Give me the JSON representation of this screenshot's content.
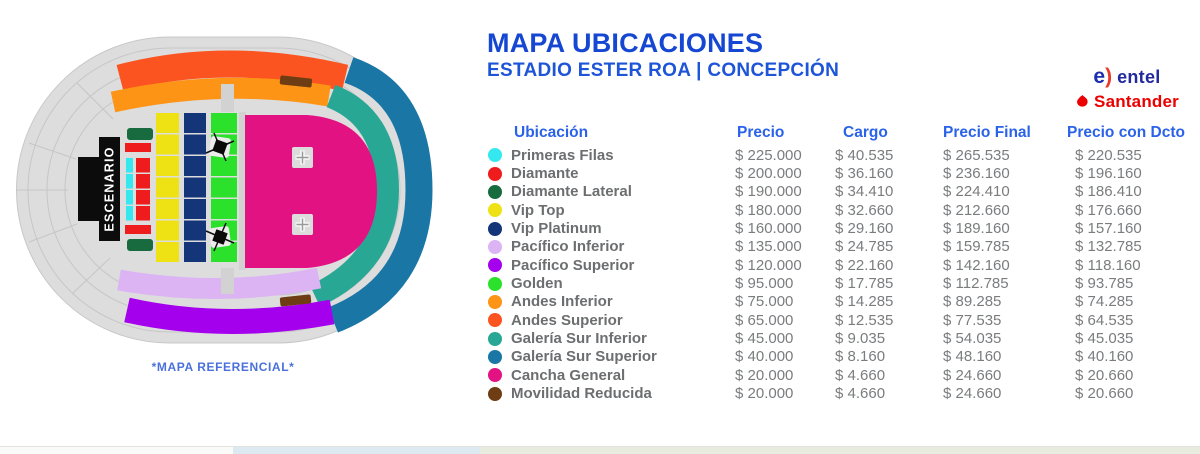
{
  "header": {
    "title": "MAPA UBICACIONES",
    "subtitle": "ESTADIO ESTER ROA | CONCEPCIÓN"
  },
  "map": {
    "stage_label": "ESCENARIO",
    "caption": "*MAPA REFERENCIAL*"
  },
  "sponsors": {
    "entel": "entel",
    "santander": "Santander"
  },
  "colors": {
    "title_blue": "#1547d2",
    "header_blue": "#2a62e8",
    "label_gray": "#6c6e70",
    "value_gray": "#7a7c7e",
    "santander_red": "#ec0000",
    "entel_blue": "#232a9e"
  },
  "table": {
    "headers": [
      "Ubicación",
      "Precio",
      "Cargo",
      "Precio Final",
      "Precio con Dcto"
    ],
    "rows": [
      {
        "key": "primeras_filas",
        "name": "Primeras Filas",
        "color": "#35E8F0",
        "precio": "$ 225.000",
        "cargo": "$ 40.535",
        "precio_final": "$ 265.535",
        "precio_dcto": "$ 220.535"
      },
      {
        "key": "diamante",
        "name": "Diamante",
        "color": "#EE1C1C",
        "precio": "$ 200.000",
        "cargo": "$ 36.160",
        "precio_final": "$ 236.160",
        "precio_dcto": "$ 196.160"
      },
      {
        "key": "diamante_lateral",
        "name": "Diamante Lateral",
        "color": "#186A3F",
        "precio": "$ 190.000",
        "cargo": "$ 34.410",
        "precio_final": "$ 224.410",
        "precio_dcto": "$ 186.410"
      },
      {
        "key": "vip_top",
        "name": "Vip Top",
        "color": "#EFE214",
        "precio": "$ 180.000",
        "cargo": "$ 32.660",
        "precio_final": "$ 212.660",
        "precio_dcto": "$ 176.660"
      },
      {
        "key": "vip_platinum",
        "name": "Vip Platinum",
        "color": "#153579",
        "precio": "$ 160.000",
        "cargo": "$ 29.160",
        "precio_final": "$ 189.160",
        "precio_dcto": "$ 157.160"
      },
      {
        "key": "pacifico_inferior",
        "name": "Pacífico Inferior",
        "color": "#DCB4F3",
        "precio": "$ 135.000",
        "cargo": "$ 24.785",
        "precio_final": "$ 159.785",
        "precio_dcto": "$ 132.785"
      },
      {
        "key": "pacifico_superior",
        "name": "Pacífico Superior",
        "color": "#A400EE",
        "precio": "$ 120.000",
        "cargo": "$ 22.160",
        "precio_final": "$ 142.160",
        "precio_dcto": "$ 118.160"
      },
      {
        "key": "golden",
        "name": "Golden",
        "color": "#2CE12C",
        "precio": "$ 95.000",
        "cargo": "$ 17.785",
        "precio_final": "$ 112.785",
        "precio_dcto": "$ 93.785"
      },
      {
        "key": "andes_inferior",
        "name": "Andes Inferior",
        "color": "#FD9415",
        "precio": "$ 75.000",
        "cargo": "$ 14.285",
        "precio_final": "$ 89.285",
        "precio_dcto": "$ 74.285"
      },
      {
        "key": "andes_superior",
        "name": "Andes Superior",
        "color": "#FB5420",
        "precio": "$ 65.000",
        "cargo": "$ 12.535",
        "precio_final": "$ 77.535",
        "precio_dcto": "$ 64.535"
      },
      {
        "key": "galeria_sur_inferior",
        "name": "Galería Sur Inferior",
        "color": "#29A795",
        "precio": "$ 45.000",
        "cargo": "$ 9.035",
        "precio_final": "$ 54.035",
        "precio_dcto": "$ 45.035"
      },
      {
        "key": "galeria_sur_superior",
        "name": "Galería Sur Superior",
        "color": "#1A76A4",
        "precio": "$ 40.000",
        "cargo": "$ 8.160",
        "precio_final": "$ 48.160",
        "precio_dcto": "$ 40.160"
      },
      {
        "key": "cancha_general",
        "name": "Cancha General",
        "color": "#E31283",
        "precio": "$ 20.000",
        "cargo": "$ 4.660",
        "precio_final": "$ 24.660",
        "precio_dcto": "$ 20.660"
      },
      {
        "key": "movilidad_reducida",
        "name": "Movilidad Reducida",
        "color": "#6E3D13",
        "precio": "$ 20.000",
        "cargo": "$ 4.660",
        "precio_final": "$ 24.660",
        "precio_dcto": "$ 20.660"
      }
    ]
  }
}
